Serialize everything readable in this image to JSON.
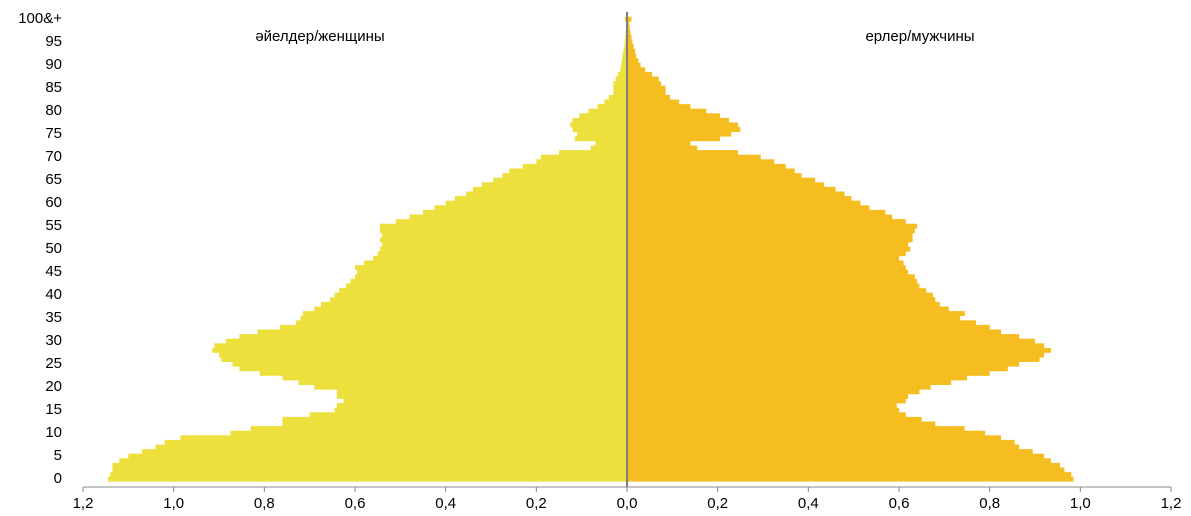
{
  "chart_data": {
    "type": "pyramid",
    "categories": [
      "0",
      null,
      null,
      null,
      null,
      "5",
      null,
      null,
      null,
      null,
      "10",
      null,
      null,
      null,
      null,
      "15",
      null,
      null,
      null,
      null,
      "20",
      null,
      null,
      null,
      null,
      "25",
      null,
      null,
      null,
      null,
      "30",
      null,
      null,
      null,
      null,
      "35",
      null,
      null,
      null,
      null,
      "40",
      null,
      null,
      null,
      null,
      "45",
      null,
      null,
      null,
      null,
      "50",
      null,
      null,
      null,
      null,
      "55",
      null,
      null,
      null,
      null,
      "60",
      null,
      null,
      null,
      null,
      "65",
      null,
      null,
      null,
      null,
      "70",
      null,
      null,
      null,
      null,
      "75",
      null,
      null,
      null,
      null,
      "80",
      null,
      null,
      null,
      null,
      "85",
      null,
      null,
      null,
      null,
      "90",
      null,
      null,
      null,
      null,
      "95",
      null,
      null,
      null,
      null,
      "100&+"
    ],
    "series": [
      {
        "name": "әйелдер/женщины",
        "color": "#eee03c",
        "side": "left",
        "values": [
          1.145,
          1.14,
          1.135,
          1.135,
          1.12,
          1.1,
          1.07,
          1.04,
          1.02,
          0.985,
          0.875,
          0.83,
          0.76,
          0.76,
          0.7,
          0.645,
          0.64,
          0.625,
          0.64,
          0.64,
          0.69,
          0.725,
          0.76,
          0.81,
          0.855,
          0.87,
          0.895,
          0.9,
          0.915,
          0.91,
          0.885,
          0.855,
          0.815,
          0.765,
          0.73,
          0.72,
          0.715,
          0.69,
          0.675,
          0.655,
          0.645,
          0.635,
          0.62,
          0.61,
          0.6,
          0.595,
          0.6,
          0.58,
          0.56,
          0.55,
          0.545,
          0.54,
          0.545,
          0.54,
          0.545,
          0.545,
          0.51,
          0.48,
          0.45,
          0.425,
          0.4,
          0.38,
          0.355,
          0.34,
          0.32,
          0.295,
          0.275,
          0.26,
          0.23,
          0.2,
          0.19,
          0.15,
          0.08,
          0.07,
          0.115,
          0.11,
          0.12,
          0.125,
          0.12,
          0.105,
          0.085,
          0.065,
          0.05,
          0.04,
          0.03,
          0.03,
          0.03,
          0.025,
          0.02,
          0.015,
          0.013,
          0.011,
          0.01,
          0.008,
          0.006,
          0.005,
          0.004,
          0.003,
          0.002,
          0.002,
          0.005
        ]
      },
      {
        "name": "ерлер/мужчины",
        "color": "#f5bd20",
        "side": "right",
        "values": [
          0.985,
          0.98,
          0.965,
          0.955,
          0.935,
          0.92,
          0.895,
          0.865,
          0.855,
          0.825,
          0.79,
          0.745,
          0.68,
          0.65,
          0.615,
          0.6,
          0.595,
          0.615,
          0.62,
          0.645,
          0.67,
          0.715,
          0.75,
          0.8,
          0.84,
          0.865,
          0.91,
          0.92,
          0.935,
          0.92,
          0.9,
          0.865,
          0.825,
          0.8,
          0.77,
          0.735,
          0.745,
          0.71,
          0.69,
          0.68,
          0.675,
          0.66,
          0.645,
          0.64,
          0.635,
          0.62,
          0.615,
          0.61,
          0.6,
          0.615,
          0.625,
          0.62,
          0.63,
          0.63,
          0.635,
          0.64,
          0.615,
          0.585,
          0.57,
          0.535,
          0.515,
          0.495,
          0.48,
          0.46,
          0.435,
          0.415,
          0.385,
          0.37,
          0.35,
          0.325,
          0.295,
          0.245,
          0.155,
          0.14,
          0.205,
          0.23,
          0.25,
          0.245,
          0.225,
          0.205,
          0.175,
          0.14,
          0.115,
          0.095,
          0.085,
          0.085,
          0.075,
          0.07,
          0.055,
          0.04,
          0.03,
          0.025,
          0.02,
          0.018,
          0.015,
          0.012,
          0.01,
          0.008,
          0.006,
          0.005,
          0.01
        ]
      }
    ],
    "xlim": [
      -1.2,
      1.2
    ],
    "xticks": [
      {
        "value": -1.2,
        "label": "1,2"
      },
      {
        "value": -1.0,
        "label": "1,0"
      },
      {
        "value": -0.8,
        "label": "0,8"
      },
      {
        "value": -0.6,
        "label": "0,6"
      },
      {
        "value": -0.4,
        "label": "0,4"
      },
      {
        "value": -0.2,
        "label": "0,2"
      },
      {
        "value": 0,
        "label": "0,0"
      },
      {
        "value": 0.2,
        "label": "0,2"
      },
      {
        "value": 0.4,
        "label": "0,4"
      },
      {
        "value": 0.6,
        "label": "0,6"
      },
      {
        "value": 0.8,
        "label": "0,8"
      },
      {
        "value": 1.0,
        "label": "1,0"
      },
      {
        "value": 1.2,
        "label": "1,2"
      }
    ]
  }
}
